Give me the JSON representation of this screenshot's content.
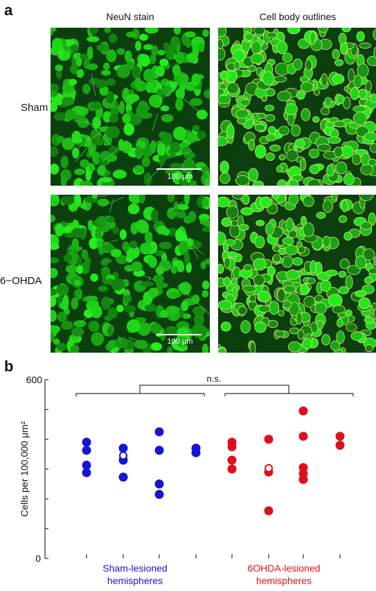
{
  "panel_a": {
    "label": "a",
    "col_titles": [
      "NeuN stain",
      "Cell body outlines"
    ],
    "row_labels": [
      "Sham",
      "6−OHDA"
    ],
    "scale_bar_label": "100 μm"
  },
  "panel_b": {
    "label": "b",
    "significance": "n.s."
  },
  "chart_data": {
    "type": "scatter",
    "title": "",
    "xlabel": "",
    "ylabel": "Cells per 100,000 μm²",
    "ylim": [
      0,
      600
    ],
    "yticks": [
      0,
      100,
      200,
      300,
      400,
      500,
      600
    ],
    "ytick_labels_shown": [
      "0",
      "600"
    ],
    "group_labels": [
      {
        "text": [
          "Sham-lesioned",
          "hemispheres"
        ],
        "color": "#1515d6"
      },
      {
        "text": [
          "6OHDA-lesioned",
          "hemispheres"
        ],
        "color": "#e0101a"
      }
    ],
    "series": [
      {
        "group": "Sham-lesioned hemispheres",
        "color": "#1515d6",
        "animals": [
          {
            "values": [
              390,
              363,
              313,
              288
            ],
            "means": []
          },
          {
            "values": [
              370,
              330,
              273
            ],
            "means": [
              345
            ]
          },
          {
            "values": [
              425,
              363,
              250,
              215
            ],
            "means": []
          },
          {
            "values": [
              370,
              355
            ],
            "means": []
          }
        ]
      },
      {
        "group": "6OHDA-lesioned hemispheres",
        "color": "#e0101a",
        "animals": [
          {
            "values": [
              390,
              375,
              330,
              300
            ],
            "means": []
          },
          {
            "values": [
              400,
              290,
              160
            ],
            "means": [
              303
            ]
          },
          {
            "values": [
              495,
              410,
              305,
              285,
              265
            ],
            "means": []
          },
          {
            "values": [
              410,
              380
            ],
            "means": []
          }
        ]
      }
    ]
  }
}
